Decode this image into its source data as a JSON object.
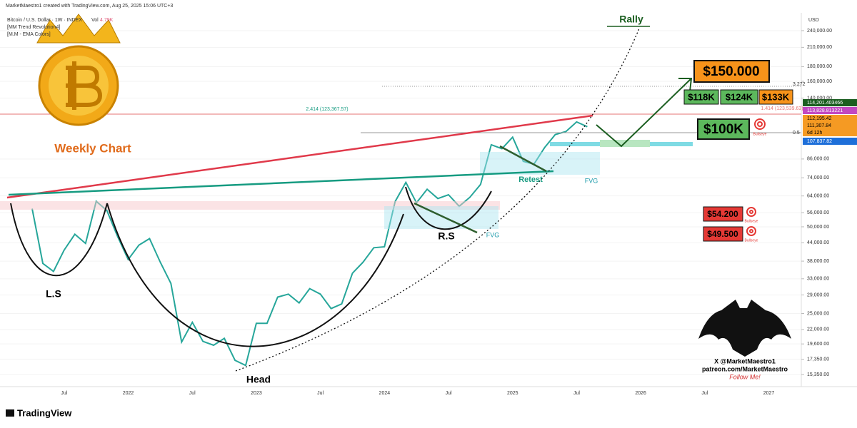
{
  "header": {
    "credit": "MarketMaestro1 created with TradingView.com, Aug 25, 2025 15:06 UTC+3",
    "symbol": "Bitcoin / U.S. Dollar · 1W · INDEX",
    "volume_label": "Vol",
    "volume": "4.79K",
    "indicators": [
      "[MM Trend Revolution4]",
      "[M.M - EMA Colors]"
    ],
    "currency": "USD"
  },
  "annotations": {
    "weekly": "Weekly Chart",
    "rally": "Rally",
    "target": "$150.000",
    "targets": [
      "$118K",
      "$124K",
      "$133K"
    ],
    "support": "$100K",
    "lows": [
      "$54.200",
      "$49.500"
    ],
    "bullseye": "Bullseye",
    "left_shoulder": "L.S",
    "head": "Head",
    "right_shoulder": "R.S",
    "retest": "Retest",
    "fvg": "FVG",
    "fib_a": "2.414 (123,367.57)",
    "fib_b": "1.414 (123,539.63)",
    "fib_c": "3.272",
    "fib_d": "0.5"
  },
  "price_tags": [
    "114,201.403466",
    "113,828.813221",
    "112,195.42",
    "111,307.84",
    "6d 12h",
    "107,837.82"
  ],
  "promo": [
    "X @MarketMaestro1",
    "patreon.com/MarketMaestro",
    "Follow Me!"
  ],
  "brand": "TradingView",
  "chart_data": {
    "type": "line",
    "log_scale": true,
    "grid": true,
    "color": "#26a69a",
    "categories": [
      null,
      null,
      null,
      "Jul",
      null,
      null,
      null,
      null,
      null,
      "2022",
      null,
      null,
      null,
      null,
      null,
      "Jul",
      null,
      null,
      null,
      null,
      null,
      "2023",
      null,
      null,
      null,
      null,
      null,
      "Jul",
      null,
      null,
      null,
      null,
      null,
      "2024",
      null,
      null,
      null,
      null,
      null,
      "Jul",
      null,
      null,
      null,
      null,
      null,
      "2025",
      null,
      null,
      null,
      null,
      null,
      "Jul",
      null,
      null,
      null,
      null,
      null,
      "2026",
      null,
      null,
      null,
      null,
      null,
      "Jul",
      null,
      null,
      null,
      null,
      null,
      "2027",
      null,
      null
    ],
    "values": [
      57800,
      37300,
      35000,
      41500,
      47100,
      43800,
      61300,
      57000,
      46300,
      38500,
      43200,
      45500,
      37700,
      31800,
      19900,
      23300,
      20000,
      19400,
      20500,
      17200,
      16500,
      23100,
      23100,
      28500,
      29200,
      27200,
      30500,
      29200,
      26000,
      27000,
      34500,
      37700,
      42300,
      42600,
      61200,
      71300,
      60600,
      67500,
      62700,
      64600,
      58900,
      63300,
      70200,
      96400,
      93400,
      102400,
      84400,
      82500,
      94200,
      104600,
      107100,
      115700,
      111300,
      null,
      null,
      null,
      null,
      null,
      null,
      null,
      null,
      null,
      null,
      null,
      null,
      null,
      null,
      null,
      null,
      null,
      null,
      null
    ],
    "ylim": [
      13932,
      276700
    ],
    "yticks": [
      {
        "value": 240000,
        "label": "240,000.00"
      },
      {
        "value": 210000,
        "label": "210,000.00"
      },
      {
        "value": 180000,
        "label": "180,000.00"
      },
      {
        "value": 160000,
        "label": "160,000.00"
      },
      {
        "value": 140000,
        "label": "140,000.00"
      },
      {
        "value": 86000,
        "label": "86,000.00"
      },
      {
        "value": 74000,
        "label": "74,000.00"
      },
      {
        "value": 64000,
        "label": "64,000.00"
      },
      {
        "value": 56000,
        "label": "56,000.00"
      },
      {
        "value": 50000,
        "label": "50,000.00"
      },
      {
        "value": 44000,
        "label": "44,000.00"
      },
      {
        "value": 38000,
        "label": "38,000.00"
      },
      {
        "value": 33000,
        "label": "33,000.00"
      },
      {
        "value": 29000,
        "label": "29,000.00"
      },
      {
        "value": 25000,
        "label": "25,000.00"
      },
      {
        "value": 22000,
        "label": "22,000.00"
      },
      {
        "value": 19600,
        "label": "19,600.00"
      },
      {
        "value": 17350,
        "label": "17,350.00"
      },
      {
        "value": 15350,
        "label": "15,350.00"
      }
    ]
  }
}
